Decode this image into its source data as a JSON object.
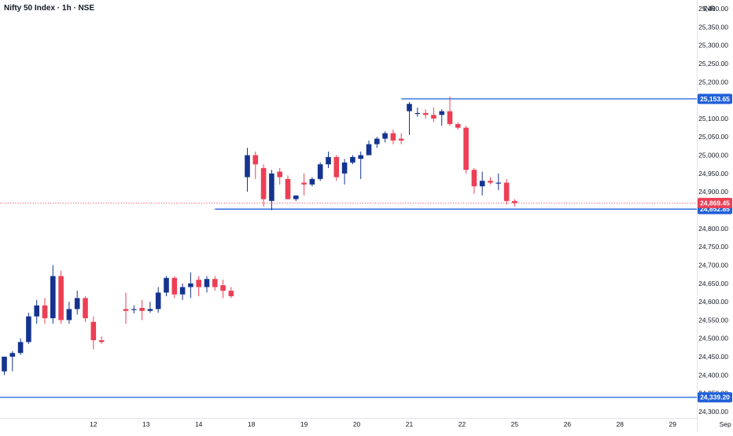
{
  "chart_data": {
    "type": "candlestick",
    "title": "Nifty 50 Index · 1h · NSE",
    "currency": "INR",
    "ylim": [
      24300,
      25400
    ],
    "y_ticks": [
      24300,
      24350,
      24400,
      24450,
      24500,
      24550,
      24600,
      24650,
      24700,
      24750,
      24800,
      24850,
      24900,
      24950,
      25000,
      25050,
      25100,
      25150,
      25200,
      25250,
      25300,
      25350,
      25400
    ],
    "y_tick_labels": [
      "24,300.00",
      "24,350.00",
      "24,400.00",
      "24,450.00",
      "24,500.00",
      "24,550.00",
      "24,600.00",
      "24,650.00",
      "24,700.00",
      "24,750.00",
      "24,800.00",
      "24,850.00",
      "24,900.00",
      "24,950.00",
      "25,000.00",
      "25,050.00",
      "25,100.00",
      "25,150.00",
      "25,200.00",
      "25,250.00",
      "25,300.00",
      "25,350.00",
      "25,400.00"
    ],
    "x_ticks": [
      {
        "label": "12",
        "pos": 11
      },
      {
        "label": "13",
        "pos": 17.5
      },
      {
        "label": "14",
        "pos": 24
      },
      {
        "label": "18",
        "pos": 30.5
      },
      {
        "label": "19",
        "pos": 37
      },
      {
        "label": "20",
        "pos": 43.5
      },
      {
        "label": "21",
        "pos": 50
      },
      {
        "label": "22",
        "pos": 56.5
      },
      {
        "label": "25",
        "pos": 63
      },
      {
        "label": "26",
        "pos": 69.5
      },
      {
        "label": "28",
        "pos": 76
      },
      {
        "label": "29",
        "pos": 82.5
      },
      {
        "label": "Sep",
        "pos": 89
      }
    ],
    "current_price": {
      "value": 24869.45,
      "label": "24,869.45"
    },
    "levels": [
      {
        "value": 25153.65,
        "label": "25,153.65",
        "start": 49
      },
      {
        "value": 24852.85,
        "label": "24,852.85",
        "start": 26
      },
      {
        "value": 24339.2,
        "label": "24,339.20",
        "start": -5
      }
    ],
    "candles": [
      {
        "i": 0,
        "o": 24410,
        "h": 24450,
        "l": 24400,
        "c": 24450
      },
      {
        "i": 1,
        "o": 24450,
        "h": 24465,
        "l": 24410,
        "c": 24460
      },
      {
        "i": 2,
        "o": 24460,
        "h": 24500,
        "l": 24455,
        "c": 24490
      },
      {
        "i": 3,
        "o": 24490,
        "h": 24570,
        "l": 24485,
        "c": 24560
      },
      {
        "i": 4,
        "o": 24560,
        "h": 24605,
        "l": 24540,
        "c": 24590
      },
      {
        "i": 5,
        "o": 24590,
        "h": 24610,
        "l": 24540,
        "c": 24555
      },
      {
        "i": 6,
        "o": 24555,
        "h": 24700,
        "l": 24540,
        "c": 24670
      },
      {
        "i": 7,
        "o": 24670,
        "h": 24685,
        "l": 24540,
        "c": 24550
      },
      {
        "i": 8,
        "o": 24550,
        "h": 24600,
        "l": 24540,
        "c": 24580
      },
      {
        "i": 9,
        "o": 24580,
        "h": 24630,
        "l": 24565,
        "c": 24610
      },
      {
        "i": 10,
        "o": 24610,
        "h": 24615,
        "l": 24545,
        "c": 24555
      },
      {
        "i": 11,
        "o": 24545,
        "h": 24560,
        "l": 24470,
        "c": 24495
      },
      {
        "i": 12,
        "o": 24495,
        "h": 24505,
        "l": 24485,
        "c": 24490
      },
      {
        "i": 15,
        "o": 24580,
        "h": 24625,
        "l": 24540,
        "c": 24575
      },
      {
        "i": 16,
        "o": 24578,
        "h": 24590,
        "l": 24568,
        "c": 24580
      },
      {
        "i": 17,
        "o": 24583,
        "h": 24605,
        "l": 24550,
        "c": 24575
      },
      {
        "i": 18,
        "o": 24575,
        "h": 24600,
        "l": 24570,
        "c": 24580
      },
      {
        "i": 19,
        "o": 24580,
        "h": 24640,
        "l": 24570,
        "c": 24625
      },
      {
        "i": 20,
        "o": 24625,
        "h": 24670,
        "l": 24615,
        "c": 24665
      },
      {
        "i": 21,
        "o": 24665,
        "h": 24670,
        "l": 24610,
        "c": 24620
      },
      {
        "i": 22,
        "o": 24620,
        "h": 24650,
        "l": 24605,
        "c": 24640
      },
      {
        "i": 23,
        "o": 24640,
        "h": 24680,
        "l": 24610,
        "c": 24650
      },
      {
        "i": 24,
        "o": 24660,
        "h": 24670,
        "l": 24615,
        "c": 24640
      },
      {
        "i": 25,
        "o": 24640,
        "h": 24670,
        "l": 24625,
        "c": 24662
      },
      {
        "i": 26,
        "o": 24662,
        "h": 24670,
        "l": 24630,
        "c": 24640
      },
      {
        "i": 27,
        "o": 24645,
        "h": 24660,
        "l": 24610,
        "c": 24630
      },
      {
        "i": 28,
        "o": 24630,
        "h": 24640,
        "l": 24610,
        "c": 24615
      },
      {
        "i": 30,
        "o": 24940,
        "h": 25020,
        "l": 24900,
        "c": 25000
      },
      {
        "i": 31,
        "o": 25000,
        "h": 25010,
        "l": 24935,
        "c": 24975
      },
      {
        "i": 32,
        "o": 24965,
        "h": 24975,
        "l": 24860,
        "c": 24880
      },
      {
        "i": 33,
        "o": 24875,
        "h": 24960,
        "l": 24850,
        "c": 24950
      },
      {
        "i": 34,
        "o": 24955,
        "h": 24965,
        "l": 24920,
        "c": 24940
      },
      {
        "i": 35,
        "o": 24935,
        "h": 24945,
        "l": 24880,
        "c": 24880
      },
      {
        "i": 36,
        "o": 24880,
        "h": 24890,
        "l": 24875,
        "c": 24890
      },
      {
        "i": 37,
        "o": 24925,
        "h": 24950,
        "l": 24890,
        "c": 24920
      },
      {
        "i": 38,
        "o": 24920,
        "h": 24940,
        "l": 24915,
        "c": 24935
      },
      {
        "i": 39,
        "o": 24935,
        "h": 24980,
        "l": 24930,
        "c": 24975
      },
      {
        "i": 40,
        "o": 24975,
        "h": 25010,
        "l": 24965,
        "c": 24995
      },
      {
        "i": 41,
        "o": 24995,
        "h": 25000,
        "l": 24930,
        "c": 24940
      },
      {
        "i": 42,
        "o": 24950,
        "h": 24990,
        "l": 24920,
        "c": 24980
      },
      {
        "i": 43,
        "o": 24980,
        "h": 25000,
        "l": 24975,
        "c": 24995
      },
      {
        "i": 44,
        "o": 24990,
        "h": 25010,
        "l": 24935,
        "c": 25000
      },
      {
        "i": 45,
        "o": 25000,
        "h": 25040,
        "l": 25000,
        "c": 25030
      },
      {
        "i": 46,
        "o": 25030,
        "h": 25050,
        "l": 25020,
        "c": 25045
      },
      {
        "i": 47,
        "o": 25045,
        "h": 25065,
        "l": 25035,
        "c": 25060
      },
      {
        "i": 48,
        "o": 25060,
        "h": 25070,
        "l": 25030,
        "c": 25040
      },
      {
        "i": 49,
        "o": 25045,
        "h": 25060,
        "l": 25030,
        "c": 25040
      },
      {
        "i": 50,
        "o": 25120,
        "h": 25145,
        "l": 25055,
        "c": 25140
      },
      {
        "i": 51,
        "o": 25115,
        "h": 25130,
        "l": 25105,
        "c": 25115
      },
      {
        "i": 52,
        "o": 25115,
        "h": 25125,
        "l": 25100,
        "c": 25110
      },
      {
        "i": 53,
        "o": 25110,
        "h": 25130,
        "l": 25090,
        "c": 25100
      },
      {
        "i": 54,
        "o": 25110,
        "h": 25125,
        "l": 25080,
        "c": 25120
      },
      {
        "i": 55,
        "o": 25120,
        "h": 25160,
        "l": 25080,
        "c": 25085
      },
      {
        "i": 56,
        "o": 25085,
        "h": 25090,
        "l": 25070,
        "c": 25075
      },
      {
        "i": 57,
        "o": 25075,
        "h": 25080,
        "l": 24950,
        "c": 24960
      },
      {
        "i": 58,
        "o": 24960,
        "h": 24965,
        "l": 24895,
        "c": 24915
      },
      {
        "i": 59,
        "o": 24915,
        "h": 24955,
        "l": 24890,
        "c": 24930
      },
      {
        "i": 60,
        "o": 24930,
        "h": 24940,
        "l": 24920,
        "c": 24925
      },
      {
        "i": 61,
        "o": 24925,
        "h": 24950,
        "l": 24905,
        "c": 24925
      },
      {
        "i": 62,
        "o": 24925,
        "h": 24935,
        "l": 24865,
        "c": 24875
      },
      {
        "i": 63,
        "o": 24875,
        "h": 24880,
        "l": 24860,
        "c": 24869.45
      }
    ]
  }
}
